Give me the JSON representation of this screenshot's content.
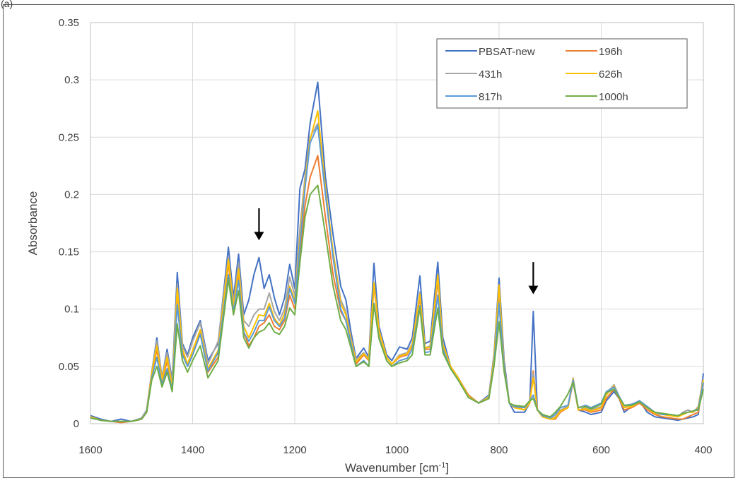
{
  "panel_label": "(a)",
  "chart_data": {
    "type": "line",
    "title": "",
    "xlabel": "Wavenumber [cm",
    "xlabel_sup": "-1",
    "xlabel_end": "]",
    "ylabel": "Absorbance",
    "xlim": [
      1600,
      400
    ],
    "ylim": [
      0,
      0.35
    ],
    "x_reversed": true,
    "x_ticks": [
      1600,
      1400,
      1200,
      1000,
      800,
      600,
      400
    ],
    "y_ticks": [
      0,
      0.05,
      0.1,
      0.15,
      0.2,
      0.25,
      0.3,
      0.35
    ],
    "y_tick_labels": [
      "0",
      "0.05",
      "0.1",
      "0.15",
      "0.2",
      "0.25",
      "0.3",
      "0.35"
    ],
    "grid": true,
    "legend_position": "top-right",
    "annotations": [
      {
        "type": "arrow-down",
        "x": 1270,
        "y_top": 0.188,
        "y_bottom": 0.16
      },
      {
        "type": "arrow-down",
        "x": 733,
        "y_top": 0.141,
        "y_bottom": 0.113
      }
    ],
    "peaks": [
      1600,
      1580,
      1560,
      1540,
      1520,
      1500,
      1490,
      1480,
      1470,
      1460,
      1450,
      1440,
      1430,
      1420,
      1410,
      1400,
      1385,
      1370,
      1350,
      1330,
      1320,
      1310,
      1300,
      1290,
      1280,
      1270,
      1260,
      1250,
      1240,
      1230,
      1220,
      1210,
      1200,
      1190,
      1180,
      1170,
      1155,
      1140,
      1125,
      1110,
      1100,
      1090,
      1080,
      1065,
      1055,
      1045,
      1035,
      1020,
      1010,
      995,
      980,
      970,
      955,
      945,
      935,
      920,
      910,
      895,
      880,
      860,
      840,
      820,
      810,
      800,
      790,
      780,
      770,
      750,
      740,
      733,
      725,
      715,
      700,
      690,
      680,
      665,
      655,
      645,
      630,
      620,
      600,
      590,
      575,
      565,
      555,
      540,
      525,
      510,
      495,
      480,
      465,
      450,
      440,
      430,
      420,
      410,
      400
    ],
    "series": [
      {
        "name": "PBSAT-new",
        "color": "#4472C4",
        "values": [
          0.007,
          0.004,
          0.002,
          0.004,
          0.002,
          0.005,
          0.012,
          0.045,
          0.075,
          0.04,
          0.065,
          0.038,
          0.132,
          0.07,
          0.06,
          0.075,
          0.09,
          0.055,
          0.07,
          0.154,
          0.11,
          0.148,
          0.095,
          0.108,
          0.13,
          0.145,
          0.118,
          0.13,
          0.11,
          0.095,
          0.11,
          0.139,
          0.118,
          0.205,
          0.222,
          0.262,
          0.298,
          0.215,
          0.165,
          0.12,
          0.108,
          0.08,
          0.057,
          0.066,
          0.058,
          0.14,
          0.085,
          0.06,
          0.055,
          0.067,
          0.065,
          0.075,
          0.129,
          0.07,
          0.072,
          0.141,
          0.075,
          0.05,
          0.04,
          0.025,
          0.018,
          0.025,
          0.06,
          0.127,
          0.055,
          0.018,
          0.01,
          0.01,
          0.018,
          0.098,
          0.012,
          0.008,
          0.004,
          0.004,
          0.01,
          0.015,
          0.038,
          0.012,
          0.01,
          0.008,
          0.01,
          0.02,
          0.028,
          0.022,
          0.01,
          0.015,
          0.02,
          0.01,
          0.006,
          0.005,
          0.004,
          0.003,
          0.004,
          0.005,
          0.006,
          0.008,
          0.044
        ]
      },
      {
        "name": "196h",
        "color": "#ED7D31",
        "values": [
          0.006,
          0.003,
          0.002,
          0.001,
          0.002,
          0.004,
          0.01,
          0.04,
          0.065,
          0.035,
          0.055,
          0.03,
          0.115,
          0.062,
          0.05,
          0.06,
          0.08,
          0.045,
          0.058,
          0.14,
          0.1,
          0.13,
          0.08,
          0.068,
          0.075,
          0.085,
          0.088,
          0.095,
          0.085,
          0.082,
          0.09,
          0.112,
          0.1,
          0.145,
          0.19,
          0.215,
          0.234,
          0.18,
          0.13,
          0.098,
          0.09,
          0.07,
          0.052,
          0.06,
          0.055,
          0.12,
          0.08,
          0.058,
          0.052,
          0.058,
          0.06,
          0.068,
          0.11,
          0.065,
          0.065,
          0.125,
          0.068,
          0.05,
          0.04,
          0.025,
          0.018,
          0.022,
          0.055,
          0.115,
          0.05,
          0.018,
          0.015,
          0.012,
          0.018,
          0.046,
          0.012,
          0.006,
          0.004,
          0.004,
          0.01,
          0.014,
          0.037,
          0.012,
          0.012,
          0.01,
          0.012,
          0.022,
          0.03,
          0.022,
          0.012,
          0.014,
          0.018,
          0.012,
          0.008,
          0.006,
          0.005,
          0.004,
          0.004,
          0.006,
          0.008,
          0.01,
          0.035
        ]
      },
      {
        "name": "431h",
        "color": "#A5A5A5",
        "values": [
          0.006,
          0.003,
          0.002,
          0.002,
          0.002,
          0.005,
          0.012,
          0.046,
          0.072,
          0.04,
          0.062,
          0.036,
          0.122,
          0.068,
          0.058,
          0.072,
          0.088,
          0.052,
          0.072,
          0.146,
          0.105,
          0.14,
          0.09,
          0.085,
          0.095,
          0.1,
          0.1,
          0.114,
          0.098,
          0.09,
          0.1,
          0.128,
          0.112,
          0.17,
          0.215,
          0.25,
          0.262,
          0.2,
          0.15,
          0.108,
          0.098,
          0.075,
          0.056,
          0.062,
          0.056,
          0.122,
          0.082,
          0.058,
          0.052,
          0.06,
          0.062,
          0.07,
          0.115,
          0.066,
          0.068,
          0.128,
          0.07,
          0.05,
          0.04,
          0.024,
          0.018,
          0.024,
          0.058,
          0.118,
          0.05,
          0.018,
          0.014,
          0.012,
          0.018,
          0.044,
          0.012,
          0.006,
          0.004,
          0.006,
          0.012,
          0.015,
          0.04,
          0.012,
          0.014,
          0.012,
          0.015,
          0.026,
          0.034,
          0.024,
          0.015,
          0.016,
          0.02,
          0.015,
          0.01,
          0.008,
          0.008,
          0.006,
          0.01,
          0.012,
          0.01,
          0.015,
          0.04
        ]
      },
      {
        "name": "626h",
        "color": "#FFC000",
        "values": [
          0.006,
          0.003,
          0.002,
          0.002,
          0.002,
          0.004,
          0.01,
          0.044,
          0.068,
          0.038,
          0.058,
          0.032,
          0.118,
          0.065,
          0.052,
          0.064,
          0.082,
          0.048,
          0.064,
          0.143,
          0.102,
          0.135,
          0.085,
          0.075,
          0.085,
          0.095,
          0.094,
          0.105,
          0.092,
          0.086,
          0.096,
          0.12,
          0.108,
          0.16,
          0.21,
          0.248,
          0.273,
          0.205,
          0.15,
          0.105,
          0.095,
          0.073,
          0.054,
          0.061,
          0.056,
          0.123,
          0.081,
          0.058,
          0.052,
          0.059,
          0.061,
          0.069,
          0.113,
          0.066,
          0.067,
          0.13,
          0.069,
          0.05,
          0.04,
          0.024,
          0.018,
          0.023,
          0.057,
          0.121,
          0.05,
          0.018,
          0.014,
          0.012,
          0.018,
          0.04,
          0.012,
          0.006,
          0.004,
          0.005,
          0.011,
          0.014,
          0.039,
          0.012,
          0.013,
          0.011,
          0.014,
          0.025,
          0.033,
          0.023,
          0.014,
          0.015,
          0.019,
          0.014,
          0.009,
          0.008,
          0.007,
          0.006,
          0.008,
          0.01,
          0.01,
          0.014,
          0.038
        ]
      },
      {
        "name": "817h",
        "color": "#5B9BD5",
        "values": [
          0.005,
          0.003,
          0.002,
          0.002,
          0.002,
          0.004,
          0.01,
          0.04,
          0.058,
          0.034,
          0.048,
          0.03,
          0.104,
          0.06,
          0.05,
          0.06,
          0.078,
          0.046,
          0.062,
          0.13,
          0.098,
          0.125,
          0.08,
          0.072,
          0.08,
          0.09,
          0.09,
          0.102,
          0.09,
          0.085,
          0.092,
          0.118,
          0.105,
          0.155,
          0.205,
          0.245,
          0.26,
          0.2,
          0.145,
          0.1,
          0.09,
          0.07,
          0.05,
          0.055,
          0.05,
          0.105,
          0.075,
          0.055,
          0.05,
          0.055,
          0.057,
          0.065,
          0.103,
          0.062,
          0.063,
          0.112,
          0.065,
          0.048,
          0.038,
          0.023,
          0.018,
          0.022,
          0.052,
          0.105,
          0.048,
          0.018,
          0.015,
          0.014,
          0.02,
          0.025,
          0.012,
          0.007,
          0.005,
          0.008,
          0.014,
          0.016,
          0.038,
          0.014,
          0.016,
          0.014,
          0.018,
          0.028,
          0.032,
          0.024,
          0.016,
          0.017,
          0.02,
          0.015,
          0.01,
          0.008,
          0.008,
          0.007,
          0.009,
          0.01,
          0.011,
          0.013,
          0.036
        ]
      },
      {
        "name": "1000h",
        "color": "#70AD47",
        "values": [
          0.005,
          0.003,
          0.002,
          0.002,
          0.002,
          0.004,
          0.01,
          0.038,
          0.05,
          0.032,
          0.045,
          0.028,
          0.087,
          0.055,
          0.045,
          0.055,
          0.068,
          0.04,
          0.055,
          0.126,
          0.095,
          0.116,
          0.075,
          0.066,
          0.075,
          0.08,
          0.082,
          0.088,
          0.08,
          0.078,
          0.085,
          0.101,
          0.095,
          0.14,
          0.18,
          0.2,
          0.208,
          0.165,
          0.12,
          0.09,
          0.082,
          0.066,
          0.05,
          0.054,
          0.05,
          0.104,
          0.074,
          0.055,
          0.05,
          0.053,
          0.055,
          0.06,
          0.101,
          0.06,
          0.06,
          0.101,
          0.062,
          0.048,
          0.038,
          0.023,
          0.018,
          0.022,
          0.05,
          0.089,
          0.045,
          0.018,
          0.016,
          0.015,
          0.02,
          0.022,
          0.012,
          0.008,
          0.006,
          0.01,
          0.015,
          0.026,
          0.036,
          0.014,
          0.015,
          0.013,
          0.017,
          0.027,
          0.03,
          0.023,
          0.016,
          0.016,
          0.019,
          0.014,
          0.01,
          0.009,
          0.008,
          0.007,
          0.009,
          0.01,
          0.011,
          0.012,
          0.03
        ]
      }
    ]
  }
}
